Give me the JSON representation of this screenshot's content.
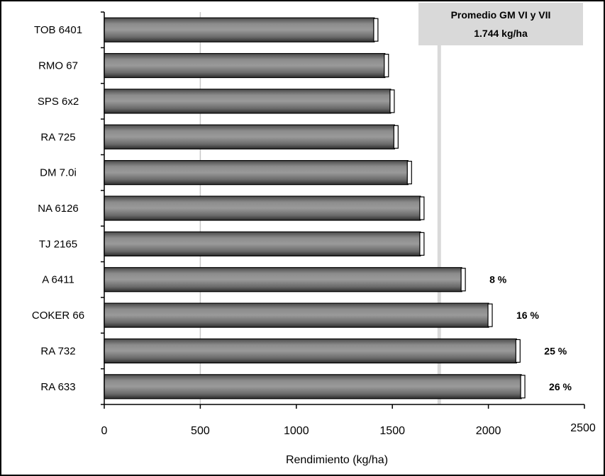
{
  "chart_data": {
    "type": "bar",
    "orientation": "horizontal",
    "categories": [
      "TOB 6401",
      "RMO 67",
      "SPS 6x2",
      "RA 725",
      "DM 7.0i",
      "NA 6126",
      "TJ 2165",
      "A 6411",
      "COKER 66",
      "RA 732",
      "RA 633"
    ],
    "values": [
      1425,
      1480,
      1510,
      1530,
      1600,
      1665,
      1665,
      1880,
      2020,
      2165,
      2190
    ],
    "percent_labels": [
      "",
      "",
      "",
      "",
      "",
      "",
      "",
      "8 %",
      "16 %",
      "25 %",
      "26 %"
    ],
    "xlabel": "Rendimiento (kg/ha)",
    "xlim": [
      0,
      2500
    ],
    "xticks": [
      "0",
      "500",
      "1000",
      "1500",
      "2000",
      "2500"
    ],
    "xtick_values": [
      0,
      500,
      1000,
      1500,
      2000,
      2500
    ],
    "gridlines": [
      500
    ],
    "reference_line": {
      "value": 1744,
      "label_line1": "Promedio GM VI y VII",
      "label_line2": "1.744 kg/ha"
    },
    "bar_color": "#707070",
    "reference_color": "#d9d9d9"
  }
}
